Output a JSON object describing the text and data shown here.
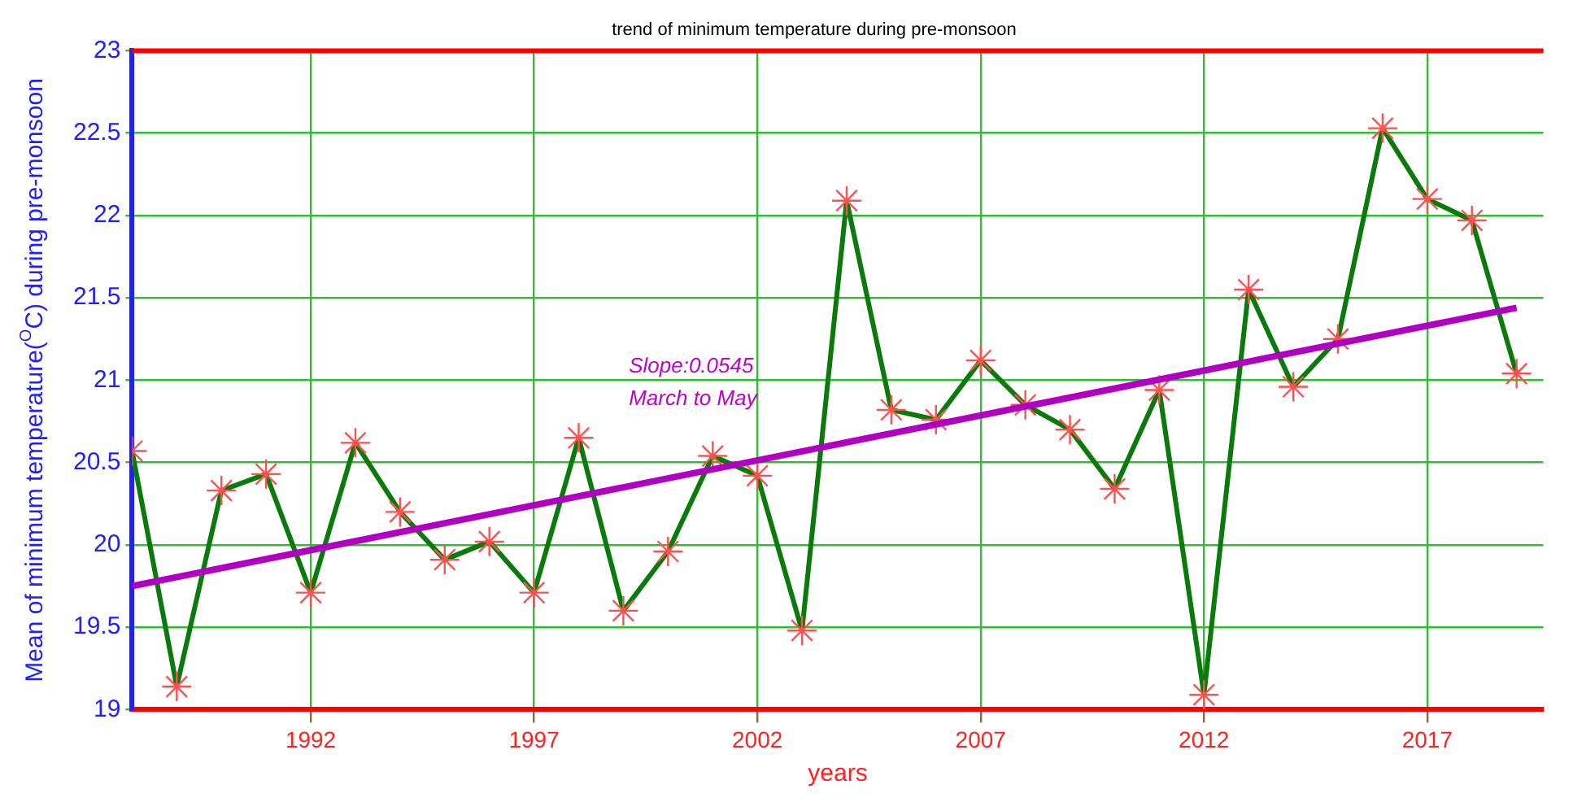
{
  "chart_data": {
    "type": "line",
    "title": "trend of minimum temperature during pre-monsoon",
    "xlabel": "years",
    "ylabel": "Mean of minimum temperature($^{O}$C) during pre-monsoon",
    "annotations": [
      "Slope:0.0545",
      "March to May"
    ],
    "x": [
      1988,
      1989,
      1990,
      1991,
      1992,
      1993,
      1994,
      1995,
      1996,
      1997,
      1998,
      1999,
      2000,
      2001,
      2002,
      2003,
      2004,
      2005,
      2006,
      2007,
      2008,
      2009,
      2010,
      2011,
      2012,
      2013,
      2014,
      2015,
      2016,
      2017,
      2018,
      2019
    ],
    "series": [
      {
        "color": "#0a7a0a",
        "values": [
          20.57,
          19.14,
          20.33,
          20.43,
          19.71,
          20.62,
          20.2,
          19.91,
          20.02,
          19.71,
          20.65,
          19.6,
          19.96,
          20.54,
          20.42,
          19.48,
          22.09,
          20.82,
          20.76,
          21.12,
          20.85,
          20.7,
          20.34,
          20.94,
          19.09,
          21.55,
          20.96,
          21.25,
          22.53,
          22.1,
          21.97,
          21.04
        ]
      },
      {
        "type": "line",
        "color": "#b000c0",
        "x": [
          1988,
          2019
        ],
        "values": [
          19.75,
          21.44
        ],
        "marker": "none"
      }
    ],
    "xlim": [
      1988,
      2019.6
    ],
    "xticks": [
      1992,
      1997,
      2002,
      2007,
      2012,
      2017
    ],
    "ylim": [
      19,
      23
    ],
    "yticks": [
      19,
      19.5,
      20,
      20.5,
      21,
      21.5,
      22,
      22.5,
      23
    ],
    "grid": true,
    "legend": false,
    "marker": "cross",
    "line_style": "solid"
  }
}
